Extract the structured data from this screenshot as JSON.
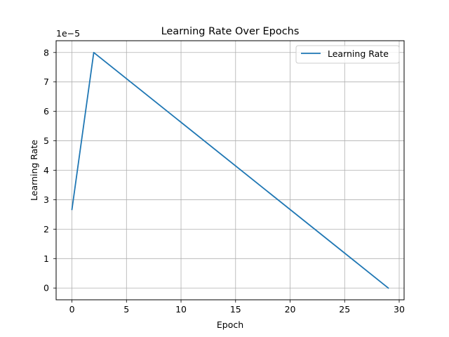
{
  "chart_data": {
    "type": "line",
    "title": "Learning Rate Over Epochs",
    "xlabel": "Epoch",
    "ylabel": "Learning Rate",
    "y_offset_label": "1e−5",
    "xlim": [
      -1.45,
      30.45
    ],
    "ylim": [
      -0.4,
      8.4
    ],
    "x_ticks": [
      0,
      5,
      10,
      15,
      20,
      25,
      30
    ],
    "x_tick_labels": [
      "0",
      "5",
      "10",
      "15",
      "20",
      "25",
      "30"
    ],
    "y_ticks": [
      0,
      1,
      2,
      3,
      4,
      5,
      6,
      7,
      8
    ],
    "y_tick_labels": [
      "0",
      "1",
      "2",
      "3",
      "4",
      "5",
      "6",
      "7",
      "8"
    ],
    "grid": true,
    "legend_position": "top-right",
    "series": [
      {
        "name": "Learning Rate",
        "color": "#1f77b4",
        "x": [
          0,
          2,
          29
        ],
        "y": [
          2.6667,
          8.0,
          0.0
        ]
      }
    ]
  }
}
